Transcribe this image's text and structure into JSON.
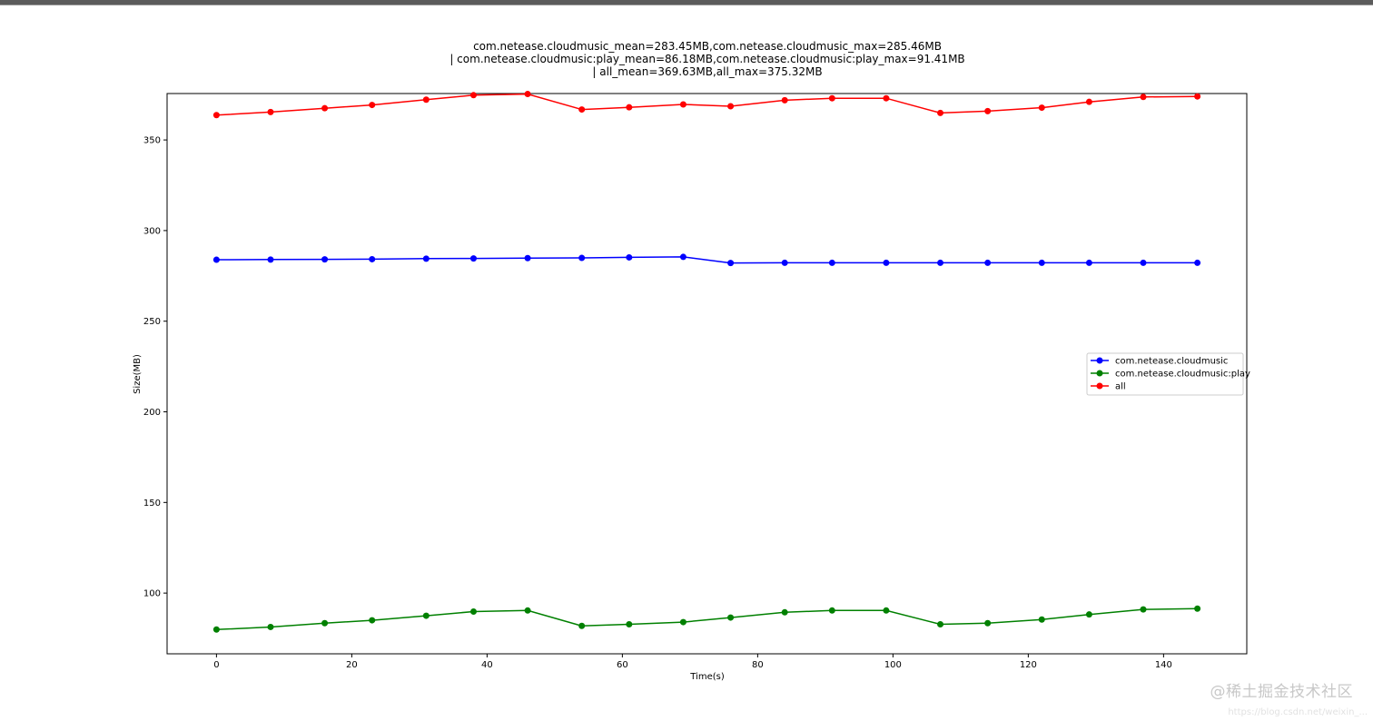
{
  "chart_data": {
    "type": "line",
    "title_lines": [
      "com.netease.cloudmusic_mean=283.45MB,com.netease.cloudmusic_max=285.46MB",
      "| com.netease.cloudmusic:play_mean=86.18MB,com.netease.cloudmusic:play_max=91.41MB",
      "| all_mean=369.63MB,all_max=375.32MB"
    ],
    "xlabel": "Time(s)",
    "ylabel": "Size(MB)",
    "xlim": [
      -7.3,
      152.3
    ],
    "ylim": [
      66.5,
      375.6
    ],
    "xticks": [
      0,
      20,
      40,
      60,
      80,
      100,
      120,
      140
    ],
    "yticks": [
      100,
      150,
      200,
      250,
      300,
      350
    ],
    "grid": false,
    "legend_position": "center-right",
    "x": [
      0,
      8,
      16,
      23,
      31,
      38,
      46,
      54,
      61,
      69,
      76,
      84,
      91,
      99,
      107,
      114,
      122,
      129,
      137,
      145
    ],
    "series": [
      {
        "name": "com.netease.cloudmusic",
        "color": "#0000ff",
        "values": [
          283.9,
          284.0,
          284.1,
          284.2,
          284.5,
          284.6,
          284.8,
          284.9,
          285.2,
          285.46,
          282.1,
          282.2,
          282.2,
          282.2,
          282.2,
          282.2,
          282.2,
          282.2,
          282.2,
          282.2
        ]
      },
      {
        "name": "com.netease.cloudmusic:play",
        "color": "#008000",
        "values": [
          79.9,
          81.3,
          83.4,
          85.0,
          87.5,
          89.8,
          90.4,
          81.9,
          82.8,
          84.0,
          86.5,
          89.4,
          90.4,
          90.4,
          82.8,
          83.4,
          85.4,
          88.2,
          91.0,
          91.41
        ]
      },
      {
        "name": "all",
        "color": "#ff0000",
        "values": [
          363.7,
          365.4,
          367.5,
          369.3,
          372.2,
          374.7,
          375.32,
          366.8,
          368.0,
          369.6,
          368.6,
          371.9,
          373.0,
          373.0,
          364.9,
          365.9,
          367.8,
          371.0,
          373.7,
          374.0
        ]
      }
    ]
  },
  "watermark": {
    "text": "@稀土掘金技术社区",
    "url": "https://blog.csdn.net/weixin_..."
  }
}
